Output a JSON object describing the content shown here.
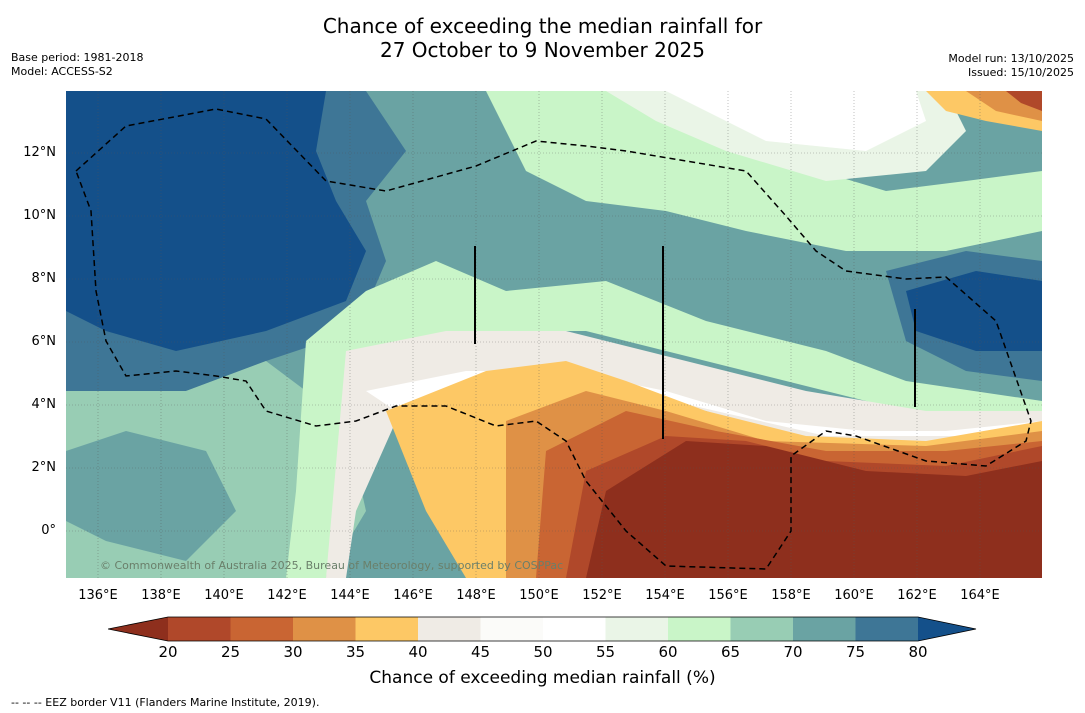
{
  "title": {
    "line1": "Chance of exceeding the median rainfall for",
    "line2": "27 October to 9 November 2025"
  },
  "meta": {
    "base_period": "Base period: 1981-2018",
    "model": "Model: ACCESS-S2",
    "model_run": "Model run: 13/10/2025",
    "issued": "Issued: 15/10/2025"
  },
  "axes": {
    "lat_labels": [
      "12°N",
      "10°N",
      "8°N",
      "6°N",
      "4°N",
      "2°N",
      "0°"
    ],
    "lon_labels": [
      "136°E",
      "138°E",
      "140°E",
      "142°E",
      "144°E",
      "146°E",
      "148°E",
      "150°E",
      "152°E",
      "154°E",
      "156°E",
      "158°E",
      "160°E",
      "162°E",
      "164°E"
    ]
  },
  "colorbar": {
    "ticks": [
      "20",
      "25",
      "30",
      "35",
      "40",
      "45",
      "50",
      "55",
      "60",
      "65",
      "70",
      "75",
      "80"
    ],
    "label": "Chance of exceeding median rainfall (%)",
    "colors": {
      "lt20": "#8e2f1d",
      "c20": "#b0482a",
      "c25": "#c96533",
      "c30": "#df9146",
      "c35": "#fdc865",
      "c40": "#efebe5",
      "c45": "#fbfbf9",
      "c50": "#ffffff",
      "c55": "#eaf5e7",
      "c60": "#c9f5c8",
      "c65": "#98cdb4",
      "c70": "#6aa3a3",
      "c75": "#3e7696",
      "gt80": "#14508a"
    }
  },
  "credit": "© Commonwealth of Australia 2025, Bureau of Meteorology, supported by COSPPac",
  "footnote": "-- -- -- EEZ border V11 (Flanders Marine Institute, 2019)."
}
